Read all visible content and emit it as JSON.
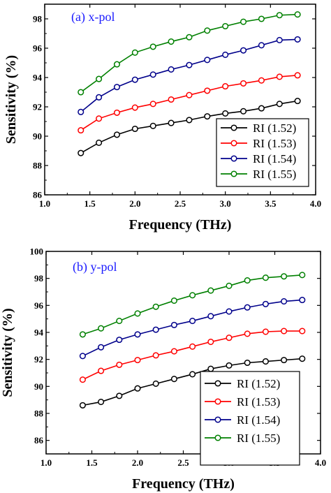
{
  "chart_data": [
    {
      "type": "line",
      "panel_label": "(a)  x-pol",
      "xlabel": "Frequency (THz)",
      "ylabel": "Sensitivity (%)",
      "xlim": [
        1.0,
        4.0
      ],
      "ylim": [
        86,
        99
      ],
      "xticks": [
        "1.0",
        "1.5",
        "2.0",
        "2.5",
        "3.0",
        "3.5",
        "4.0"
      ],
      "yticks": [
        "86",
        "88",
        "90",
        "92",
        "94",
        "96",
        "98"
      ],
      "legend_position": "bottom-right",
      "x": [
        1.4,
        1.6,
        1.8,
        2.0,
        2.2,
        2.4,
        2.6,
        2.8,
        3.0,
        3.2,
        3.4,
        3.6,
        3.8
      ],
      "series": [
        {
          "name": "RI (1.52)",
          "color": "#000000",
          "values": [
            88.85,
            89.55,
            90.1,
            90.5,
            90.7,
            90.9,
            91.1,
            91.35,
            91.55,
            91.7,
            91.9,
            92.2,
            92.4
          ]
        },
        {
          "name": "RI (1.53)",
          "color": "#ff0000",
          "values": [
            90.4,
            91.2,
            91.6,
            91.95,
            92.2,
            92.5,
            92.8,
            93.1,
            93.4,
            93.6,
            93.8,
            94.05,
            94.15
          ]
        },
        {
          "name": "RI (1.54)",
          "color": "#00008b",
          "values": [
            91.65,
            92.65,
            93.35,
            93.85,
            94.2,
            94.55,
            94.85,
            95.2,
            95.55,
            95.85,
            96.2,
            96.55,
            96.6
          ]
        },
        {
          "name": "RI (1.55)",
          "color": "#008000",
          "values": [
            93.0,
            93.9,
            94.9,
            95.7,
            96.1,
            96.45,
            96.75,
            97.2,
            97.5,
            97.8,
            98.0,
            98.25,
            98.3
          ]
        }
      ]
    },
    {
      "type": "line",
      "panel_label": "(b)  y-pol",
      "xlabel": "Frequency (THz)",
      "ylabel": "Sensitivity (%)",
      "xlim": [
        1.0,
        4.0
      ],
      "ylim": [
        85,
        100
      ],
      "xticks": [
        "1.0",
        "1.5",
        "2.0",
        "2.5",
        "3.0",
        "3.5",
        "4.0"
      ],
      "yticks": [
        "86",
        "88",
        "90",
        "92",
        "94",
        "96",
        "98",
        "100"
      ],
      "legend_position": "bottom-right",
      "x": [
        1.4,
        1.6,
        1.8,
        2.0,
        2.2,
        2.4,
        2.6,
        2.8,
        3.0,
        3.2,
        3.4,
        3.6,
        3.8
      ],
      "series": [
        {
          "name": "RI (1.52)",
          "color": "#000000",
          "values": [
            88.6,
            88.85,
            89.3,
            89.85,
            90.2,
            90.55,
            90.9,
            91.3,
            91.55,
            91.75,
            91.85,
            91.95,
            92.05
          ]
        },
        {
          "name": "RI (1.53)",
          "color": "#ff0000",
          "values": [
            90.5,
            91.15,
            91.6,
            91.95,
            92.3,
            92.6,
            92.95,
            93.3,
            93.6,
            93.9,
            94.05,
            94.1,
            94.1
          ]
        },
        {
          "name": "RI (1.54)",
          "color": "#00008b",
          "values": [
            92.25,
            92.9,
            93.45,
            93.85,
            94.2,
            94.55,
            94.85,
            95.2,
            95.55,
            95.85,
            96.1,
            96.3,
            96.4
          ]
        },
        {
          "name": "RI (1.55)",
          "color": "#008000",
          "values": [
            93.85,
            94.3,
            94.85,
            95.4,
            95.9,
            96.35,
            96.75,
            97.1,
            97.45,
            97.85,
            98.05,
            98.15,
            98.25
          ]
        }
      ]
    }
  ]
}
